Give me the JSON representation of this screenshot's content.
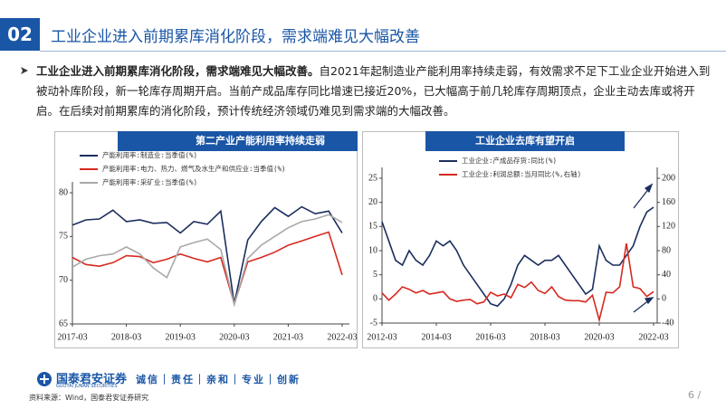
{
  "header": {
    "number": "02",
    "title": "工业企业进入前期累库消化阶段，需求端难见大幅改善"
  },
  "content": {
    "lead": "工业企业进入前期累库消化阶段，需求端难见大幅改善。",
    "body": "自2021年起制造业产能利用率持续走弱，有效需求不足下工业企业开始进入到被动补库阶段，新一轮库存周期开启。当前产成品库存同比增速已接近20%，已大幅高于前几轮库存周期顶点，企业主动去库或将开启。在后续对前期累库的消化阶段，预计传统经济领域仍难见到需求端的大幅改善。"
  },
  "chart_data": [
    {
      "type": "line",
      "title": "第二产业产能利用率持续走弱",
      "categories": [
        "2017-03",
        null,
        null,
        null,
        "2018-03",
        null,
        null,
        null,
        "2019-03",
        null,
        null,
        null,
        "2020-03",
        null,
        null,
        null,
        "2021-03",
        null,
        null,
        null,
        "2022-03"
      ],
      "series": [
        {
          "name": "产能利用率:制造业:当季值(%)",
          "color": "#1b2f5e",
          "values": [
            76.3,
            76.9,
            77.0,
            78.0,
            76.7,
            76.9,
            76.5,
            76.6,
            75.4,
            76.7,
            76.4,
            77.9,
            67.3,
            74.6,
            76.7,
            78.3,
            77.3,
            78.4,
            77.6,
            77.9,
            75.4
          ]
        },
        {
          "name": "产能利用率:电力、热力、燃气及水生产和供应业:当季值(%)",
          "color": "#d62a20",
          "values": [
            72.6,
            71.8,
            71.6,
            72.0,
            72.8,
            72.7,
            72.0,
            72.4,
            73.0,
            72.5,
            72.1,
            72.6,
            67.3,
            72.1,
            72.6,
            73.2,
            74.0,
            74.5,
            75.0,
            75.5,
            70.6
          ]
        },
        {
          "name": "产能利用率:采矿业:当季值(%)",
          "color": "#a9a9a9",
          "values": [
            71.5,
            72.4,
            72.8,
            73.0,
            73.8,
            73.0,
            71.4,
            70.3,
            73.8,
            74.3,
            74.7,
            73.5,
            67.2,
            72.5,
            74.0,
            75.0,
            76.0,
            76.7,
            77.0,
            77.5,
            76.6
          ]
        }
      ],
      "ylim": [
        65,
        80
      ],
      "yticks": [
        65,
        70,
        75,
        80
      ]
    },
    {
      "type": "line",
      "title": "工业企业去库有望开启",
      "categories": [
        "2012-03",
        null,
        null,
        null,
        null,
        null,
        null,
        null,
        "2014-03",
        null,
        null,
        null,
        null,
        null,
        null,
        null,
        "2016-03",
        null,
        null,
        null,
        null,
        null,
        null,
        null,
        "2018-03",
        null,
        null,
        null,
        null,
        null,
        null,
        null,
        "2020-03",
        null,
        null,
        null,
        null,
        null,
        null,
        null,
        "2022-03"
      ],
      "series": [
        {
          "name": "工业企业:产成品存货:同比(%)",
          "color": "#1b2f5e",
          "values": [
            16,
            12,
            8,
            7,
            10,
            8,
            7,
            9,
            12,
            11,
            12,
            10,
            7,
            5,
            3,
            1,
            -1,
            -1.5,
            0,
            3,
            7,
            9,
            8,
            7,
            8,
            8,
            9,
            7,
            5,
            3,
            1,
            2,
            11,
            8,
            7,
            7,
            9,
            11,
            15,
            18,
            19
          ]
        },
        {
          "name": "工业企业:利润总额:当月同比(%,右轴)",
          "color": "#d62a20",
          "axis": "y2",
          "values": [
            10,
            -2,
            8,
            20,
            16,
            10,
            14,
            8,
            10,
            12,
            0,
            -4,
            -2,
            -1,
            -8,
            -5,
            11,
            5,
            8,
            2,
            24,
            19,
            28,
            14,
            9,
            20,
            4,
            -2,
            -3,
            -3,
            -5,
            6,
            -35,
            11,
            10,
            20,
            92,
            20,
            17,
            4,
            12
          ]
        }
      ],
      "ylim": [
        -5,
        25
      ],
      "yticks": [
        -5,
        0,
        5,
        10,
        15,
        20,
        25
      ],
      "y2lim": [
        -40,
        200
      ],
      "y2ticks": [
        -40,
        0,
        40,
        80,
        120,
        160,
        200
      ]
    }
  ],
  "footer": {
    "logo": "国泰君安证券",
    "logo_en": "GUOTAI JUNAN SECURITIES",
    "slogan": "诚信｜责任｜亲和｜专业｜创新",
    "source": "资料来源：Wind，国泰君安证券研究",
    "page": "6 /"
  }
}
